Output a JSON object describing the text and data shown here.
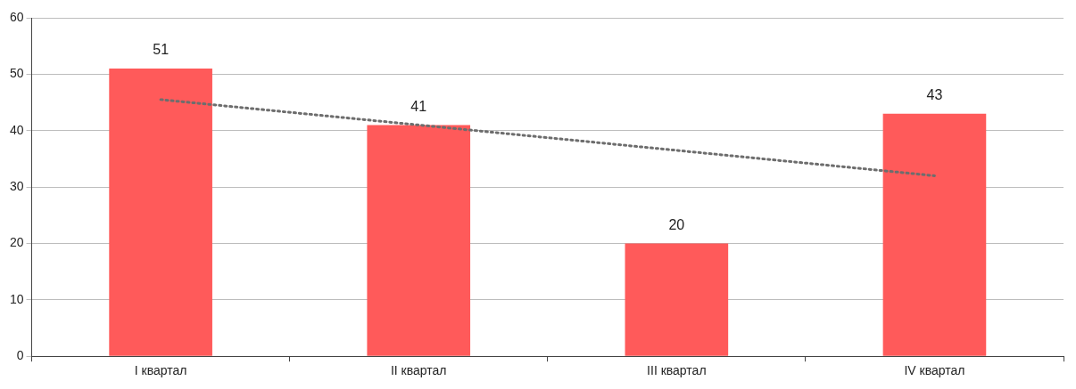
{
  "chart_data": {
    "type": "bar",
    "categories": [
      "I квартал",
      "II квартал",
      "III квартал",
      "IV квартал"
    ],
    "series": [
      {
        "color": "#ff5a5a",
        "values": [
          51,
          41,
          20,
          43
        ],
        "value_labels": [
          "51",
          "41",
          "20",
          "43"
        ]
      },
      {
        "type": "line",
        "color": "#6d6d6d",
        "values": [
          45.5,
          41,
          36.5,
          32
        ],
        "line_style": "dotted",
        "marker": "none"
      }
    ],
    "ylim": [
      0,
      60
    ],
    "yticks": [
      0,
      10,
      20,
      30,
      40,
      50,
      60
    ],
    "grid": "y",
    "legend": false
  }
}
